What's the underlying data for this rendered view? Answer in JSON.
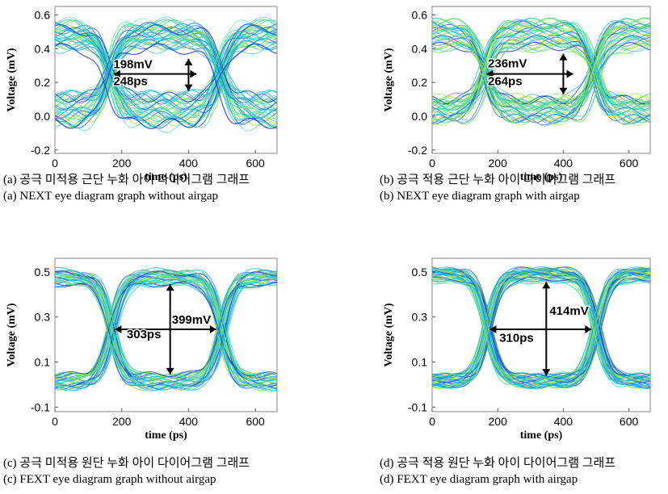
{
  "chart_data": [
    {
      "type": "eye-diagram",
      "panel": "a",
      "xlabel": "time (ps)",
      "ylabel": "Voltage (mV)",
      "xlim": [
        0,
        665
      ],
      "ylim": [
        -0.22,
        0.65
      ],
      "xticks": [
        "0",
        "200",
        "400",
        "600"
      ],
      "xtick_values": [
        0,
        200,
        400,
        600
      ],
      "yticks": [
        "-0.2",
        "0.0",
        "0.2",
        "0.4",
        "0.6"
      ],
      "ytick_values": [
        -0.2,
        0.0,
        0.2,
        0.4,
        0.6
      ],
      "eye": {
        "low": 0.03,
        "high": 0.48,
        "noise": 0.1,
        "crossings": [
          162,
          495
        ],
        "cross_level": 0.25,
        "period": 333
      },
      "annotations": [
        {
          "text": "198mV",
          "label_at": [
            175,
            0.285
          ]
        },
        {
          "text": "248ps",
          "label_at": [
            175,
            0.185
          ]
        }
      ],
      "measurements": {
        "height": {
          "x": 400,
          "y1": 0.15,
          "y2": 0.34
        },
        "width": {
          "y": 0.25,
          "x1": 176,
          "x2": 424
        }
      },
      "caption_korean": "(a) 공극 미적용 근단 누화 아이 다이어그램 그래프",
      "caption_english": "(a) NEXT eye diagram graph without airgap"
    },
    {
      "type": "eye-diagram",
      "panel": "b",
      "xlabel": "time (ps)",
      "ylabel": "Voltage (mV)",
      "xlim": [
        0,
        665
      ],
      "ylim": [
        -0.22,
        0.65
      ],
      "xticks": [
        "0",
        "200",
        "400",
        "600"
      ],
      "xtick_values": [
        0,
        200,
        400,
        600
      ],
      "yticks": [
        "-0.2",
        "0.0",
        "0.2",
        "0.4",
        "0.6"
      ],
      "yticks_values_note": "",
      "ytick_values": [
        -0.2,
        0.0,
        0.2,
        0.4,
        0.6
      ],
      "eye": {
        "low": 0.03,
        "high": 0.48,
        "noise": 0.08,
        "crossings": [
          162,
          495
        ],
        "cross_level": 0.25,
        "period": 333
      },
      "annotations": [
        {
          "text": "236mV",
          "label_at": [
            170,
            0.29
          ]
        },
        {
          "text": "264ps",
          "label_at": [
            170,
            0.185
          ]
        }
      ],
      "measurements": {
        "height": {
          "x": 400,
          "y1": 0.13,
          "y2": 0.37
        },
        "width": {
          "y": 0.25,
          "x1": 166,
          "x2": 430
        }
      },
      "caption_korean": "(b) 공극 적용 근단 누화 아이 다이어그램 그래프",
      "caption_english": "(b) NEXT eye diagram graph with airgap"
    },
    {
      "type": "eye-diagram",
      "panel": "c",
      "xlabel": "time (ps)",
      "ylabel": "Voltage (mV)",
      "xlim": [
        0,
        665
      ],
      "ylim": [
        -0.12,
        0.56
      ],
      "xticks": [
        "0",
        "200",
        "400",
        "600"
      ],
      "xtick_values": [
        0,
        200,
        400,
        600
      ],
      "yticks": [
        "-0.1",
        "0.1",
        "0.3",
        "0.5"
      ],
      "ytick_values": [
        -0.1,
        0.1,
        0.3,
        0.5
      ],
      "eye": {
        "low": 0.015,
        "high": 0.475,
        "noise": 0.035,
        "crossings": [
          170,
          500
        ],
        "cross_level": 0.245,
        "period": 333
      },
      "annotations": [
        {
          "text": "399mV",
          "label_at": [
            350,
            0.27
          ]
        },
        {
          "text": "303ps",
          "label_at": [
            215,
            0.205
          ]
        }
      ],
      "measurements": {
        "height": {
          "x": 345,
          "y1": 0.045,
          "y2": 0.445
        },
        "width": {
          "y": 0.245,
          "x1": 180,
          "x2": 483
        }
      },
      "caption_korean": "(c) 공극 미적용 원단 누화 아이 다이어그램 그래프",
      "caption_english": "(c) FEXT eye diagram graph without airgap"
    },
    {
      "type": "eye-diagram",
      "panel": "d",
      "xlabel": "time (ps)",
      "ylabel": "Voltage (mV)",
      "xlim": [
        0,
        665
      ],
      "ylim": [
        -0.12,
        0.56
      ],
      "xticks": [
        "0",
        "200",
        "400",
        "600"
      ],
      "xtick_values": [
        0,
        200,
        400,
        600
      ],
      "yticks": [
        "-0.1",
        "0.1",
        "0.3",
        "0.5"
      ],
      "ytick_values": [
        -0.1,
        0.1,
        0.3,
        0.5
      ],
      "eye": {
        "low": 0.015,
        "high": 0.485,
        "noise": 0.03,
        "crossings": [
          168,
          500
        ],
        "cross_level": 0.245,
        "period": 333
      },
      "annotations": [
        {
          "text": "414mV",
          "label_at": [
            358,
            0.31
          ]
        },
        {
          "text": "310ps",
          "label_at": [
            205,
            0.19
          ]
        }
      ],
      "measurements": {
        "height": {
          "x": 348,
          "y1": 0.04,
          "y2": 0.455
        },
        "width": {
          "y": 0.245,
          "x1": 176,
          "x2": 486
        }
      },
      "caption_korean": "(d) 공극 적용 원단 누화 아이 다이어그램 그래프",
      "caption_english": "(d) FEXT eye diagram graph with airgap"
    }
  ]
}
